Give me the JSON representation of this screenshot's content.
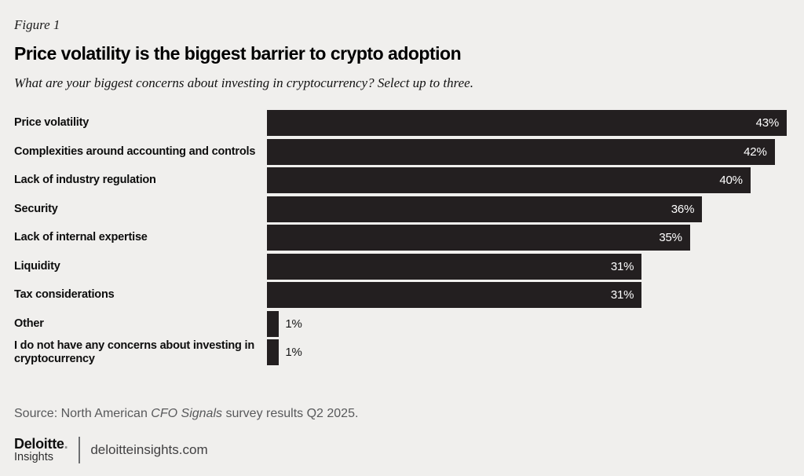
{
  "header": {
    "figure_label": "Figure 1",
    "title": "Price volatility is the biggest barrier to crypto adoption",
    "subtitle": "What are your biggest concerns about investing in cryptocurrency? Select up to three."
  },
  "chart_data": {
    "type": "bar",
    "orientation": "horizontal",
    "title": "Price volatility is the biggest barrier to crypto adoption",
    "question": "What are your biggest concerns about investing in cryptocurrency? Select up to three.",
    "categories": [
      "Price volatility",
      "Complexities around accounting and controls",
      "Lack of industry regulation",
      "Security",
      "Lack of internal expertise",
      "Liquidity",
      "Tax considerations",
      "Other",
      "I do not have any concerns about investing in cryptocurrency"
    ],
    "values": [
      43,
      42,
      40,
      36,
      35,
      31,
      31,
      1,
      1
    ],
    "unit": "%",
    "xlim": [
      0,
      43
    ],
    "grid": false,
    "axis_labels": "none",
    "value_label_position": "inside-end, outside for small bars",
    "value_label_inside_min": 5,
    "bar_color": "#231f20",
    "value_label_inside_color": "#ffffff",
    "value_label_outside_color": "#161616"
  },
  "source": {
    "prefix": "Source: North American ",
    "italic_part": "CFO Signals",
    "suffix": " survey results Q2 2025."
  },
  "footer": {
    "brand_name": "Deloitte",
    "brand_dot": ".",
    "brand_sub": "Insights",
    "site": "deloitteinsights.com"
  },
  "colors": {
    "background": "#f0efed",
    "bar": "#231f20",
    "title_text": "#000000",
    "source_text": "#58595b",
    "brand_dot": "#8c8c8c",
    "divider": "#6d6e71",
    "site_text": "#414042"
  }
}
